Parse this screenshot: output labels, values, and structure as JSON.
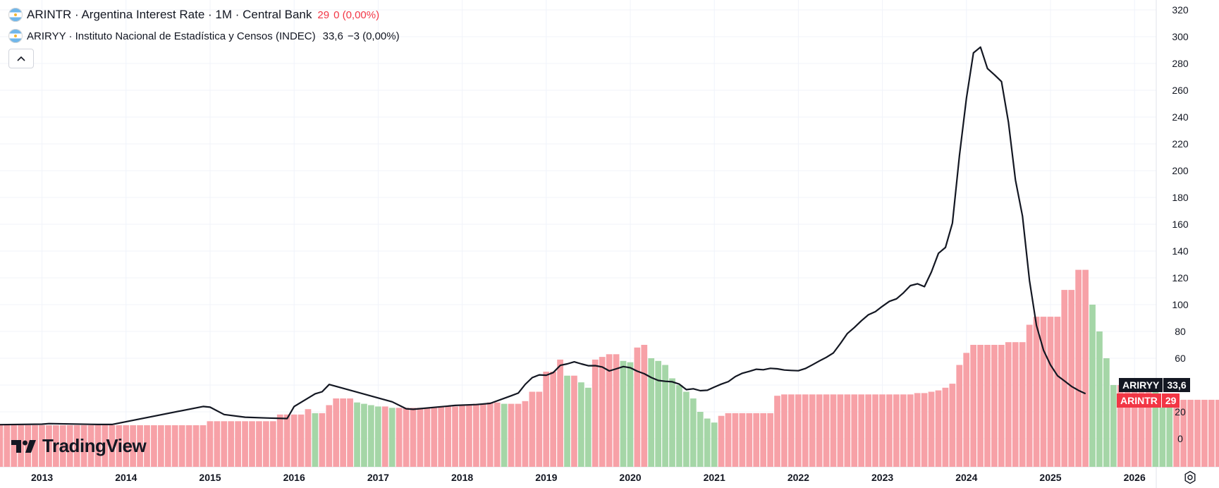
{
  "legend": {
    "series1": {
      "name": "ARINTR · Argentina Interest Rate · 1M · Central Bank",
      "value": "29",
      "change": "0 (0,00%)"
    },
    "series2": {
      "name": "ARIRYY · Instituto Nacional de Estadística y Censos (INDEC)",
      "value": "33,6",
      "change": "−3 (0,00%)"
    },
    "collapse_icon": "chevron-up-icon"
  },
  "logo": {
    "text": "TradingView",
    "icon": "tradingview-logo-icon"
  },
  "badges": {
    "ariryy": {
      "label": "ARIRYY",
      "value": "33,6",
      "color": "#131722"
    },
    "arintr": {
      "label": "ARINTR",
      "value": "29",
      "color": "#f23645"
    }
  },
  "colors": {
    "up": "#a5d6a7",
    "down": "#f7a1a7",
    "line": "#131722"
  },
  "chart_data": {
    "type": "bar",
    "y_axis": {
      "min": -20,
      "max": 320,
      "ticks": [
        0,
        20,
        40,
        60,
        80,
        100,
        120,
        140,
        160,
        180,
        200,
        220,
        240,
        260,
        280,
        300,
        320
      ],
      "position": "right"
    },
    "x_axis": {
      "ticks": [
        "2013",
        "2014",
        "2015",
        "2016",
        "2017",
        "2018",
        "2019",
        "2020",
        "2021",
        "2022",
        "2023",
        "2024",
        "2025",
        "2026"
      ]
    },
    "grid": true,
    "legend_position": "top-left",
    "series": [
      {
        "name": "ARINTR",
        "type": "bar",
        "start": "2012-07",
        "step": "1M",
        "values": [
          10,
          10,
          10,
          10,
          10,
          10,
          10,
          10,
          10,
          10,
          10,
          10,
          10,
          10,
          10,
          10,
          10,
          10,
          10,
          10,
          10,
          10,
          10,
          10,
          10,
          10,
          10,
          10,
          10,
          10,
          13,
          13,
          13,
          13,
          13,
          13,
          13,
          13,
          13,
          13,
          18,
          18,
          18,
          18,
          22,
          19,
          19,
          25,
          30,
          30,
          30,
          27,
          26,
          25,
          24,
          24,
          23,
          23,
          23,
          23,
          23,
          23,
          23,
          24,
          24,
          24,
          25,
          25,
          26,
          26,
          27,
          27,
          26,
          26,
          26,
          28,
          35,
          35,
          50,
          50,
          59,
          47,
          47,
          42,
          38,
          59,
          61,
          63,
          63,
          58,
          57,
          68,
          70,
          60,
          58,
          55,
          45,
          40,
          35,
          30,
          20,
          15,
          12,
          17,
          19,
          19,
          19,
          19,
          19,
          19,
          19,
          32,
          33,
          33,
          33,
          33,
          33,
          33,
          33,
          33,
          33,
          33,
          33,
          33,
          33,
          33,
          33,
          33,
          33,
          33,
          33,
          34,
          34,
          35,
          36,
          38,
          41,
          55,
          64,
          70,
          70,
          70,
          70,
          70,
          72,
          72,
          72,
          85,
          91,
          91,
          91,
          91,
          111,
          111,
          126,
          126,
          100,
          80,
          60,
          40,
          40,
          40,
          40,
          40,
          40,
          35,
          33,
          29,
          29,
          29,
          29,
          29,
          29,
          29,
          29,
          29,
          29
        ],
        "colors": [
          "#f7a1a7",
          "#a5d6a7"
        ]
      },
      {
        "name": "ARIRYY",
        "type": "line",
        "points": [
          [
            "2012-07",
            10.4
          ],
          [
            "2013-01",
            10.8
          ],
          [
            "2013-02",
            11.2
          ],
          [
            "2013-09",
            10.6
          ],
          [
            "2013-11",
            10.6
          ],
          [
            "2014-12",
            24
          ],
          [
            "2015-01",
            23.5
          ],
          [
            "2015-03",
            18
          ],
          [
            "2015-06",
            16
          ],
          [
            "2015-09",
            15.4
          ],
          [
            "2015-12",
            15
          ],
          [
            "2016-01",
            24
          ],
          [
            "2016-04",
            33.5
          ],
          [
            "2016-05",
            35
          ],
          [
            "2016-06",
            40.4
          ],
          [
            "2017-03",
            27.5
          ],
          [
            "2017-05",
            22.3
          ],
          [
            "2017-06",
            21.9
          ],
          [
            "2017-12",
            24.8
          ],
          [
            "2018-03",
            25.4
          ],
          [
            "2018-05",
            26.3
          ],
          [
            "2018-08",
            32
          ],
          [
            "2018-09",
            34
          ],
          [
            "2018-10",
            40.5
          ],
          [
            "2018-11",
            45.5
          ],
          [
            "2018-12",
            47.6
          ],
          [
            "2019-01",
            47.3
          ],
          [
            "2019-02",
            49.3
          ],
          [
            "2019-03",
            54.7
          ],
          [
            "2019-04",
            55.8
          ],
          [
            "2019-05",
            57.3
          ],
          [
            "2019-06",
            55.8
          ],
          [
            "2019-07",
            54.4
          ],
          [
            "2019-08",
            54.5
          ],
          [
            "2019-09",
            53.5
          ],
          [
            "2019-10",
            50.5
          ],
          [
            "2019-11",
            52.1
          ],
          [
            "2019-12",
            53.8
          ],
          [
            "2020-01",
            52.9
          ],
          [
            "2020-02",
            50.3
          ],
          [
            "2020-03",
            48.4
          ],
          [
            "2020-04",
            45.6
          ],
          [
            "2020-05",
            43.4
          ],
          [
            "2020-06",
            42.8
          ],
          [
            "2020-07",
            42.4
          ],
          [
            "2020-08",
            40.7
          ],
          [
            "2020-09",
            36.6
          ],
          [
            "2020-10",
            37.2
          ],
          [
            "2020-11",
            35.8
          ],
          [
            "2020-12",
            36.1
          ],
          [
            "2021-01",
            38.5
          ],
          [
            "2021-02",
            40.7
          ],
          [
            "2021-03",
            42.6
          ],
          [
            "2021-04",
            46.3
          ],
          [
            "2021-05",
            48.8
          ],
          [
            "2021-06",
            50.2
          ],
          [
            "2021-07",
            51.8
          ],
          [
            "2021-08",
            51.4
          ],
          [
            "2021-09",
            52.5
          ],
          [
            "2021-10",
            52.1
          ],
          [
            "2021-11",
            51.2
          ],
          [
            "2021-12",
            50.9
          ],
          [
            "2022-01",
            50.7
          ],
          [
            "2022-02",
            52.3
          ],
          [
            "2022-03",
            55.1
          ],
          [
            "2022-04",
            58
          ],
          [
            "2022-05",
            60.7
          ],
          [
            "2022-06",
            64
          ],
          [
            "2022-07",
            71
          ],
          [
            "2022-08",
            78.5
          ],
          [
            "2022-09",
            83
          ],
          [
            "2022-10",
            88
          ],
          [
            "2022-11",
            92.4
          ],
          [
            "2022-12",
            94.8
          ],
          [
            "2023-01",
            98.8
          ],
          [
            "2023-02",
            102.5
          ],
          [
            "2023-03",
            104.3
          ],
          [
            "2023-04",
            108.8
          ],
          [
            "2023-05",
            114.2
          ],
          [
            "2023-06",
            115.6
          ],
          [
            "2023-07",
            113.4
          ],
          [
            "2023-08",
            124.4
          ],
          [
            "2023-09",
            138.3
          ],
          [
            "2023-10",
            142.7
          ],
          [
            "2023-11",
            160.9
          ],
          [
            "2023-12",
            211.4
          ],
          [
            "2024-01",
            254.2
          ],
          [
            "2024-02",
            287.9
          ],
          [
            "2024-03",
            292.2
          ],
          [
            "2024-04",
            276.2
          ],
          [
            "2024-05",
            271.5
          ],
          [
            "2024-06",
            266.5
          ],
          [
            "2024-07",
            236
          ],
          [
            "2024-08",
            193
          ],
          [
            "2024-09",
            166
          ],
          [
            "2024-10",
            118
          ],
          [
            "2024-11",
            84.5
          ],
          [
            "2024-12",
            66
          ],
          [
            "2025-01",
            55
          ],
          [
            "2025-02",
            47
          ],
          [
            "2025-03",
            43
          ],
          [
            "2025-04",
            39
          ],
          [
            "2025-05",
            36
          ],
          [
            "2025-06",
            33.6
          ]
        ],
        "color": "#131722"
      }
    ]
  }
}
